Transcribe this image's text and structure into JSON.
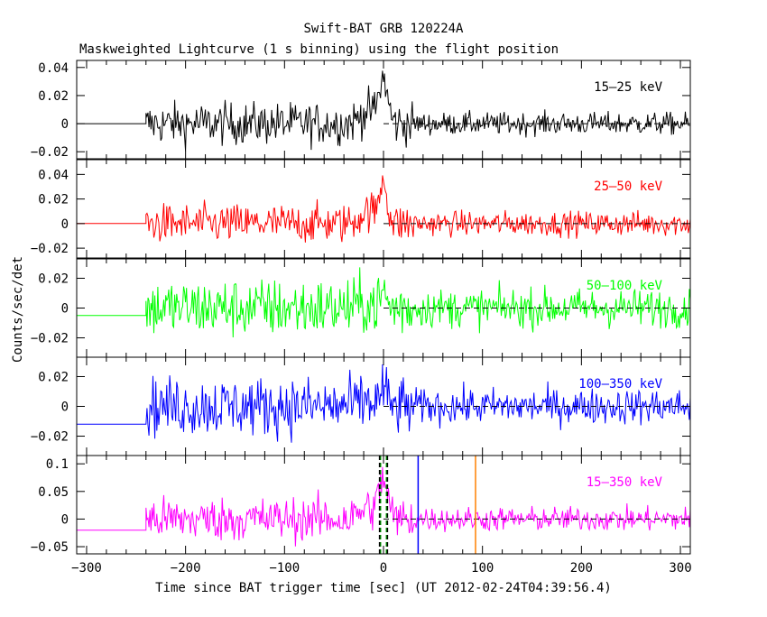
{
  "chart_data": {
    "type": "line",
    "title": "Swift-BAT GRB 120224A",
    "subtitle": "Maskweighted Lightcurve (1 s binning) using the flight position",
    "xlabel": "Time since BAT trigger time [sec] (UT 2012-02-24T04:39:56.4)",
    "ylabel": "Counts/sec/det",
    "xlim": [
      -310,
      310
    ],
    "xticks": [
      -300,
      -200,
      -100,
      0,
      100,
      200,
      300
    ],
    "grid": false,
    "legend": "per-panel label, top-right",
    "data_start": -240,
    "panels": [
      {
        "name": "15-25 keV",
        "label": "15–25 keV",
        "color": "#000000",
        "ylim": [
          -0.025,
          0.045
        ],
        "yticks": [
          -0.02,
          0,
          0.02,
          0.04
        ],
        "ytick_labels": [
          "−0.02",
          "0",
          "0.02",
          "0.04"
        ],
        "pre_level": 0.0,
        "noise": 0.0075,
        "decay_noise": 0.004,
        "peak": 0.03,
        "peak_width": 6,
        "markers": false
      },
      {
        "name": "25-50 keV",
        "label": "25–50 keV",
        "color": "#ff0000",
        "ylim": [
          -0.028,
          0.052
        ],
        "yticks": [
          -0.02,
          0,
          0.02,
          0.04
        ],
        "ytick_labels": [
          "−0.02",
          "0",
          "0.02",
          "0.04"
        ],
        "pre_level": 0.0,
        "noise": 0.008,
        "decay_noise": 0.005,
        "peak": 0.035,
        "peak_width": 5,
        "markers": false
      },
      {
        "name": "50-100 keV",
        "label": "50–100 keV",
        "color": "#00ff00",
        "ylim": [
          -0.033,
          0.033
        ],
        "yticks": [
          -0.02,
          0,
          0.02
        ],
        "ytick_labels": [
          "−0.02",
          "0",
          "0.02"
        ],
        "pre_level": -0.005,
        "noise": 0.01,
        "decay_noise": 0.0065,
        "peak": 0.01,
        "peak_width": 4,
        "markers": false
      },
      {
        "name": "100-350 keV",
        "label": "100–350 keV",
        "color": "#0000ff",
        "ylim": [
          -0.033,
          0.033
        ],
        "yticks": [
          -0.02,
          0,
          0.02
        ],
        "ytick_labels": [
          "−0.02",
          "0",
          "0.02"
        ],
        "pre_level": -0.012,
        "noise": 0.01,
        "decay_noise": 0.006,
        "peak": 0.012,
        "peak_width": 4,
        "markers": false
      },
      {
        "name": "15-350 keV",
        "label": "15–350 keV",
        "color": "#ff00ff",
        "ylim": [
          -0.063,
          0.115
        ],
        "yticks": [
          -0.05,
          0,
          0.05,
          0.1
        ],
        "ytick_labels": [
          "−0.05",
          "0",
          "0.05",
          "0.1"
        ],
        "pre_level": -0.02,
        "noise": 0.02,
        "decay_noise": 0.011,
        "peak": 0.07,
        "peak_width": 6,
        "markers": true
      }
    ],
    "vertical_markers": [
      {
        "x": -3,
        "color": "#00aa00",
        "style": "dashed"
      },
      {
        "x": 3,
        "color": "#00aa00",
        "style": "dashed"
      },
      {
        "x": -4,
        "color": "#000000",
        "style": "dashed"
      },
      {
        "x": 4,
        "color": "#000000",
        "style": "dashed"
      },
      {
        "x": 35,
        "color": "#0000ff",
        "style": "solid"
      },
      {
        "x": 93,
        "color": "#ff8000",
        "style": "solid"
      }
    ]
  }
}
